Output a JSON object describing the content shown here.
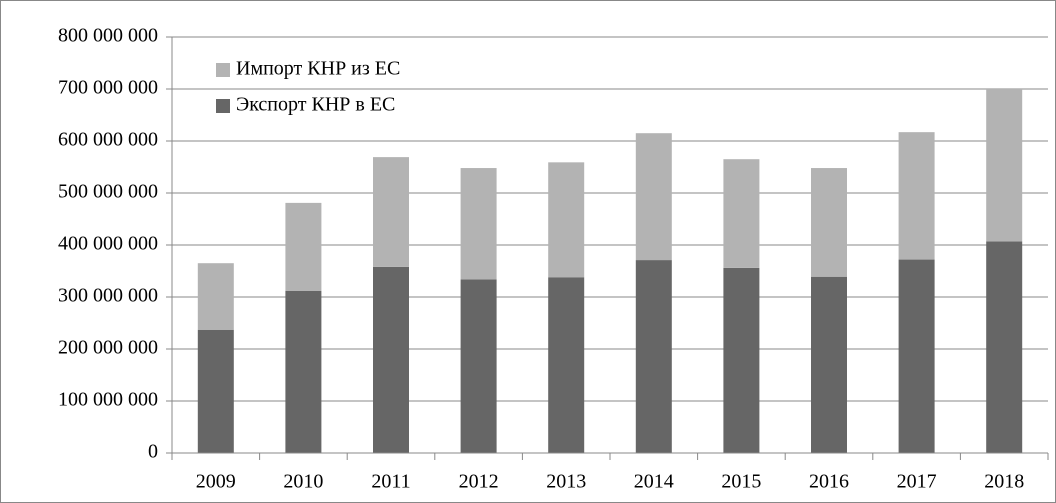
{
  "chart_data": {
    "type": "stacked_bar",
    "categories": [
      "2009",
      "2010",
      "2011",
      "2012",
      "2013",
      "2014",
      "2015",
      "2016",
      "2017",
      "2018"
    ],
    "series": [
      {
        "name": "Экспорт КНР в ЕС",
        "color": "#666666",
        "values": [
          237000000,
          312000000,
          358000000,
          334000000,
          338000000,
          371000000,
          356000000,
          339000000,
          372000000,
          407000000
        ]
      },
      {
        "name": "Импорт КНР из ЕС",
        "color": "#b3b3b3",
        "values": [
          128000000,
          169000000,
          211000000,
          214000000,
          221000000,
          244000000,
          209000000,
          209000000,
          245000000,
          293000000
        ]
      }
    ],
    "ylim": [
      0,
      800000000
    ],
    "yticks": [
      0,
      {
        "value": 100000000,
        "label": "100 000 000"
      },
      {
        "value": 200000000,
        "label": "200 000 000"
      },
      {
        "value": 300000000,
        "label": "300 000 000"
      },
      {
        "value": 400000000,
        "label": "400 000 000"
      },
      {
        "value": 500000000,
        "label": "500 000 000"
      },
      {
        "value": 600000000,
        "label": "600 000 000"
      },
      {
        "value": 700000000,
        "label": "700 000 000"
      },
      {
        "value": 800000000,
        "label": "800 000 000"
      }
    ],
    "grid": true,
    "legend": "top-left"
  }
}
